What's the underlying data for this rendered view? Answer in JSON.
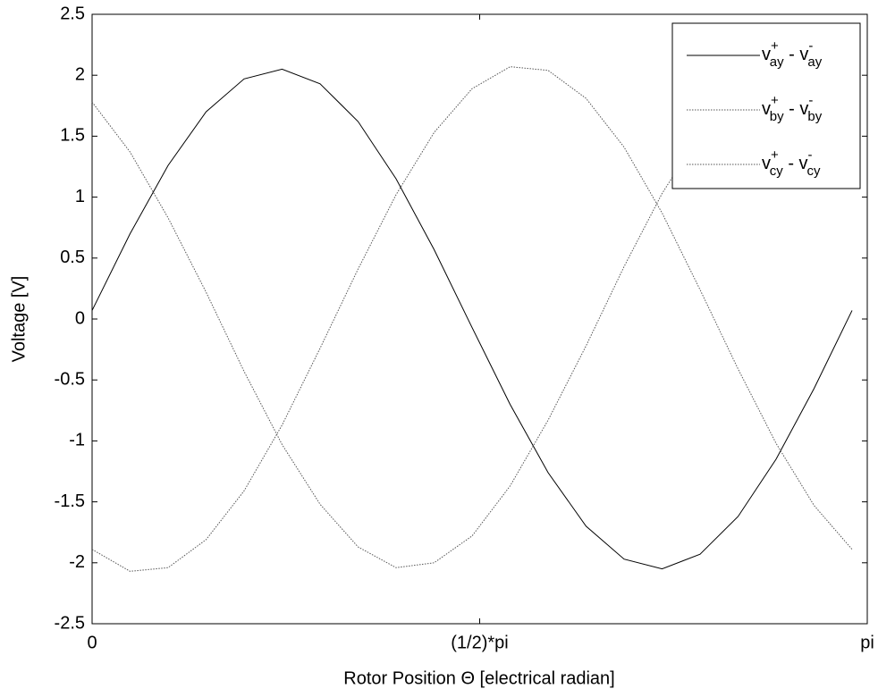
{
  "chart_data": {
    "type": "line",
    "xlabel": "Rotor Position Θ [electrical radian]",
    "ylabel": "Voltage [V]",
    "x": [
      0,
      0.154,
      0.308,
      0.462,
      0.616,
      0.77,
      0.924,
      1.078,
      1.232,
      1.386,
      1.54,
      1.694,
      1.848,
      2.002,
      2.156,
      2.31,
      2.464,
      2.618,
      2.772,
      2.926,
      3.08
    ],
    "series": [
      {
        "name": "v+ay - v-ay",
        "color": "#000000",
        "dash": "solid",
        "values": [
          0.07,
          0.7,
          1.26,
          1.7,
          1.97,
          2.05,
          1.93,
          1.62,
          1.15,
          0.57,
          -0.07,
          -0.7,
          -1.26,
          -1.7,
          -1.97,
          -2.05,
          -1.93,
          -1.62,
          -1.15,
          -0.57,
          0.07
        ]
      },
      {
        "name": "v+by - v-by",
        "color": "#000000",
        "dash": "dotted",
        "values": [
          1.78,
          1.37,
          0.83,
          0.22,
          -0.43,
          -1.03,
          -1.52,
          -1.87,
          -2.04,
          -2.0,
          -1.78,
          -1.37,
          -0.83,
          -0.22,
          0.43,
          1.03,
          1.52,
          1.87,
          2.04,
          2.0,
          1.78
        ]
      },
      {
        "name": "v+cy - v-cy",
        "color": "#000000",
        "dash": "dotted",
        "values": [
          -1.89,
          -2.07,
          -2.04,
          -1.81,
          -1.41,
          -0.87,
          -0.24,
          0.41,
          1.02,
          1.53,
          1.89,
          2.07,
          2.04,
          1.81,
          1.41,
          0.87,
          0.24,
          -0.41,
          -1.02,
          -1.53,
          -1.89
        ]
      }
    ],
    "xlim": [
      0,
      3.1416
    ],
    "xticks": [
      0,
      {
        "value": 1.5708,
        "label": "(1/2)*pi"
      },
      {
        "value": 3.1416,
        "label": "pi"
      }
    ],
    "ylim": [
      -2.5,
      2.5
    ],
    "yticks": [
      -2.5,
      -2,
      -1.5,
      -1,
      -0.5,
      0,
      0.5,
      1,
      1.5,
      2,
      2.5
    ],
    "grid": false,
    "legend": "upper right"
  }
}
